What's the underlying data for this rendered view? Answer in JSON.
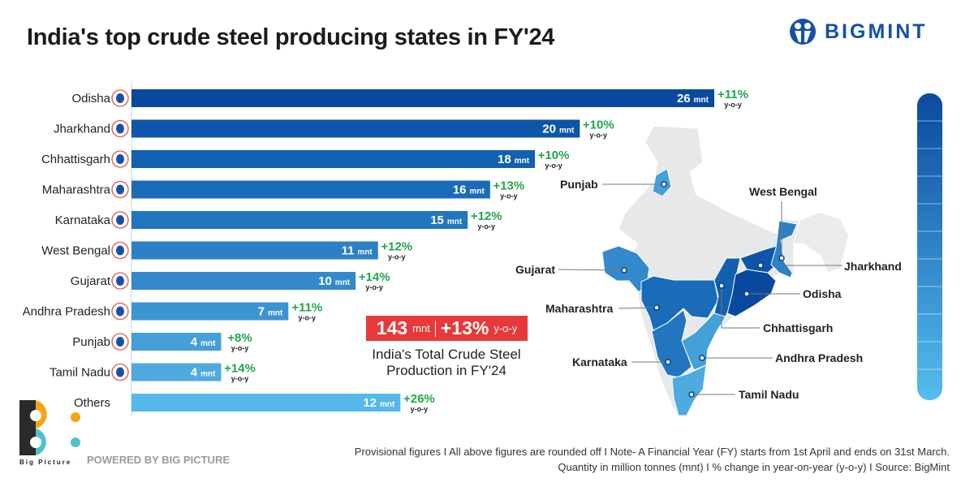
{
  "header": {
    "title": "India's top crude steel producing states in FY'24",
    "brand": "BIGMINT"
  },
  "chart_data": {
    "type": "bar",
    "orientation": "horizontal",
    "title": "India's top crude steel producing states in FY'24",
    "unit": "mnt",
    "change_unit": "y-o-y",
    "categories": [
      "Odisha",
      "Jharkhand",
      "Chhattisgarh",
      "Maharashtra",
      "Karnataka",
      "West Bengal",
      "Gujarat",
      "Andhra Pradesh",
      "Punjab",
      "Tamil Nadu",
      "Others"
    ],
    "values": [
      26,
      20,
      18,
      16,
      15,
      11,
      10,
      7,
      4,
      4,
      12
    ],
    "changes": [
      "+11%",
      "+10%",
      "+10%",
      "+13%",
      "+12%",
      "+12%",
      "+14%",
      "+11%",
      "+8%",
      "+14%",
      "+26%"
    ],
    "colors": [
      "#0a4a9e",
      "#0d55a8",
      "#1260b0",
      "#1a6bb8",
      "#2275bf",
      "#2b80c6",
      "#3389cc",
      "#3c94d3",
      "#459fd9",
      "#4eaadf",
      "#55b8ea"
    ],
    "change_color": "#1fa64a"
  },
  "total": {
    "value": "143",
    "unit": "mnt",
    "change": "+13%",
    "change_unit": "y-o-y",
    "caption_line1": "India's Total Crude Steel",
    "caption_line2": "Production in FY'24",
    "color": "#e8393a"
  },
  "map": {
    "labels": {
      "punjab": "Punjab",
      "west_bengal": "West Bengal",
      "jharkhand": "Jharkhand",
      "gujarat": "Gujarat",
      "odisha": "Odisha",
      "maharashtra": "Maharashtra",
      "chhattisgarh": "Chhattisgarh",
      "andhra": "Andhra Pradesh",
      "karnataka": "Karnataka",
      "tamil_nadu": "Tamil Nadu"
    }
  },
  "footer": {
    "line1": "Provisional figures  I  All above figures are rounded off  I  Note- A Financial Year (FY) starts from 1st April and ends on 31st March.",
    "line2": "Quantity in million tonnes (mnt)  I  % change in year-on-year (y-o-y)  I  Source: BigMint",
    "powered": "POWERED BY BIG PICTURE",
    "bp_logo": "Big Picture"
  }
}
